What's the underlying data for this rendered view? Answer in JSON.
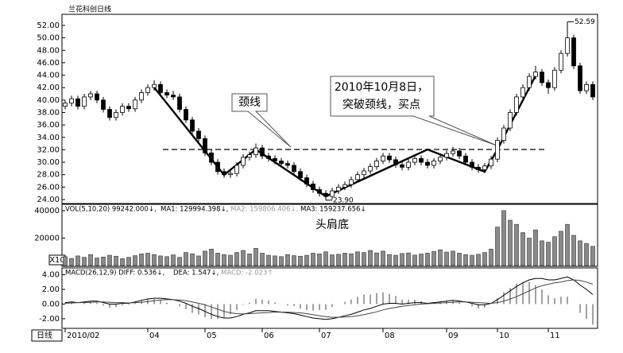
{
  "chart_data": [
    {
      "type": "candlestick",
      "title": "兰花科创日线",
      "period_label": "日线",
      "pattern_label": "头肩底",
      "neckline_label": "颈线",
      "callout": [
        "2010年10月8日，",
        "突破颈线，买点"
      ],
      "high_label": "52.59",
      "low_label": "23.90",
      "up_color": "#ffffff",
      "down_color": "#000000",
      "categories": [
        "2010/02",
        null,
        null,
        null,
        null,
        null,
        null,
        null,
        null,
        null,
        null,
        null,
        null,
        "04",
        null,
        null,
        null,
        null,
        null,
        null,
        null,
        null,
        "05",
        null,
        null,
        null,
        null,
        null,
        null,
        null,
        null,
        "06",
        null,
        null,
        null,
        null,
        null,
        null,
        null,
        null,
        "07",
        null,
        null,
        null,
        null,
        null,
        null,
        null,
        null,
        null,
        "08",
        null,
        null,
        null,
        null,
        null,
        null,
        null,
        null,
        null,
        "09",
        null,
        null,
        null,
        null,
        null,
        null,
        null,
        "10",
        null,
        null,
        null,
        null,
        null,
        null,
        null,
        "11",
        null,
        null,
        null,
        null,
        null,
        null,
        null
      ],
      "ohlc": [
        [
          39.0,
          40.0,
          38.5,
          39.5
        ],
        [
          39.5,
          40.7,
          39.0,
          40.2
        ],
        [
          40.2,
          40.7,
          38.5,
          39.0
        ],
        [
          39.0,
          41.0,
          38.5,
          40.5
        ],
        [
          40.5,
          41.5,
          40.0,
          41.0
        ],
        [
          41.0,
          41.5,
          39.5,
          40.0
        ],
        [
          40.0,
          40.5,
          38.0,
          38.5
        ],
        [
          38.5,
          39.0,
          36.7,
          37.2
        ],
        [
          37.2,
          38.5,
          36.7,
          38.0
        ],
        [
          38.0,
          39.5,
          37.5,
          39.0
        ],
        [
          39.0,
          39.5,
          38.1,
          38.6
        ],
        [
          38.6,
          40.5,
          38.1,
          40.0
        ],
        [
          40.0,
          41.7,
          39.5,
          41.2
        ],
        [
          41.2,
          42.5,
          40.7,
          42.0
        ],
        [
          42.0,
          43.2,
          41.5,
          42.5
        ],
        [
          42.5,
          43.0,
          40.7,
          41.2
        ],
        [
          41.2,
          41.7,
          40.3,
          40.8
        ],
        [
          40.8,
          41.5,
          40.0,
          40.5
        ],
        [
          40.5,
          41.0,
          38.0,
          38.5
        ],
        [
          38.5,
          39.0,
          36.3,
          36.8
        ],
        [
          36.8,
          37.3,
          34.5,
          35.0
        ],
        [
          35.0,
          35.5,
          33.3,
          33.8
        ],
        [
          33.8,
          34.3,
          31.0,
          31.5
        ],
        [
          31.5,
          32.0,
          29.5,
          30.0
        ],
        [
          30.0,
          30.5,
          28.0,
          28.5
        ],
        [
          28.5,
          29.0,
          27.5,
          28.0
        ],
        [
          28.0,
          28.7,
          27.5,
          28.2
        ],
        [
          28.2,
          30.0,
          27.7,
          29.5
        ],
        [
          29.5,
          31.3,
          29.0,
          30.8
        ],
        [
          30.8,
          31.7,
          30.3,
          31.2
        ],
        [
          31.2,
          33.0,
          30.7,
          32.3
        ],
        [
          32.3,
          32.8,
          30.5,
          31.0
        ],
        [
          31.0,
          31.5,
          30.1,
          30.6
        ],
        [
          30.6,
          31.1,
          29.7,
          30.2
        ],
        [
          30.2,
          30.7,
          29.3,
          29.8
        ],
        [
          29.8,
          30.3,
          29.0,
          29.5
        ],
        [
          29.5,
          30.0,
          28.0,
          28.5
        ],
        [
          28.5,
          29.0,
          27.0,
          27.5
        ],
        [
          27.5,
          28.0,
          26.0,
          26.5
        ],
        [
          26.5,
          27.0,
          25.1,
          25.6
        ],
        [
          25.6,
          26.1,
          24.5,
          25.0
        ],
        [
          25.0,
          25.5,
          23.9,
          24.5
        ],
        [
          24.5,
          25.9,
          24.0,
          25.4
        ],
        [
          25.4,
          26.5,
          24.9,
          26.0
        ],
        [
          26.0,
          26.9,
          25.5,
          26.4
        ],
        [
          26.4,
          27.7,
          25.9,
          27.2
        ],
        [
          27.2,
          28.5,
          26.7,
          28.0
        ],
        [
          28.0,
          29.1,
          27.5,
          28.6
        ],
        [
          28.6,
          29.8,
          28.1,
          29.3
        ],
        [
          29.3,
          30.7,
          28.8,
          30.2
        ],
        [
          30.2,
          31.5,
          29.7,
          31.0
        ],
        [
          31.0,
          31.5,
          29.9,
          30.4
        ],
        [
          30.4,
          30.9,
          29.1,
          29.6
        ],
        [
          29.6,
          30.1,
          28.7,
          29.2
        ],
        [
          29.2,
          30.5,
          28.7,
          30.0
        ],
        [
          30.0,
          31.1,
          29.5,
          30.6
        ],
        [
          30.6,
          31.1,
          29.5,
          30.0
        ],
        [
          30.0,
          30.5,
          29.0,
          29.5
        ],
        [
          29.5,
          30.7,
          29.0,
          30.2
        ],
        [
          30.2,
          31.3,
          29.7,
          30.8
        ],
        [
          30.8,
          31.9,
          30.3,
          31.4
        ],
        [
          31.4,
          32.5,
          30.9,
          31.8
        ],
        [
          31.8,
          32.3,
          30.5,
          31.0
        ],
        [
          31.0,
          31.5,
          29.5,
          30.0
        ],
        [
          30.0,
          30.5,
          28.7,
          29.2
        ],
        [
          29.2,
          29.7,
          28.3,
          28.8
        ],
        [
          28.8,
          29.9,
          28.3,
          29.4
        ],
        [
          29.4,
          31.0,
          28.9,
          30.5
        ],
        [
          30.5,
          34.0,
          30.0,
          33.5
        ],
        [
          33.5,
          36.0,
          33.0,
          35.5
        ],
        [
          35.5,
          38.5,
          35.0,
          38.0
        ],
        [
          38.0,
          41.0,
          37.5,
          40.5
        ],
        [
          40.5,
          42.5,
          40.0,
          42.0
        ],
        [
          42.0,
          44.3,
          41.5,
          43.8
        ],
        [
          43.8,
          45.5,
          43.3,
          44.5
        ],
        [
          44.5,
          45.0,
          42.3,
          42.8
        ],
        [
          42.8,
          43.3,
          41.0,
          42.0
        ],
        [
          42.0,
          45.3,
          41.5,
          44.8
        ],
        [
          44.8,
          48.0,
          44.3,
          47.5
        ],
        [
          47.5,
          52.59,
          47.0,
          50.0
        ],
        [
          50.0,
          50.5,
          45.0,
          45.5
        ],
        [
          45.5,
          46.0,
          41.0,
          41.5
        ],
        [
          41.5,
          43.0,
          41.0,
          42.5
        ],
        [
          42.5,
          43.0,
          40.0,
          40.5
        ]
      ],
      "ylim": [
        23.36,
        53.53
      ],
      "yticks": [
        {
          "value": 24,
          "label": "24.00"
        },
        {
          "value": 26,
          "label": "26.00"
        },
        {
          "value": 28,
          "label": "28.00"
        },
        {
          "value": 30,
          "label": "30.00"
        },
        {
          "value": 32,
          "label": "32.00"
        },
        {
          "value": 34,
          "label": "34.00"
        },
        {
          "value": 36,
          "label": "36.00"
        },
        {
          "value": 38,
          "label": "38.00"
        },
        {
          "value": 40,
          "label": "40.00"
        },
        {
          "value": 42,
          "label": "42.00"
        },
        {
          "value": 44,
          "label": "44.00"
        },
        {
          "value": 46,
          "label": "46.00"
        },
        {
          "value": 48,
          "label": "48.00"
        },
        {
          "value": 50,
          "label": "50.00"
        },
        {
          "value": 52,
          "label": "52.00"
        }
      ]
    },
    {
      "type": "bar",
      "header": [
        "VOL(5,10,20) 99242.000↓,",
        "MA1: 129994.398↓,",
        "MA2: 159806.406↓,",
        "MA3: 159237.656↓"
      ],
      "unit_label": "X10",
      "color": "#8a8a8a",
      "values": [
        6500,
        5200,
        7000,
        6000,
        8000,
        5500,
        6200,
        7500,
        6800,
        5000,
        6000,
        7200,
        8500,
        9000,
        8000,
        7000,
        6500,
        7800,
        6000,
        9500,
        8500,
        7000,
        10500,
        12000,
        9000,
        8000,
        7500,
        9500,
        11000,
        8500,
        12500,
        9000,
        7500,
        7000,
        6500,
        8000,
        7200,
        6800,
        7500,
        9000,
        8500,
        10000,
        7800,
        8200,
        9000,
        8600,
        10000,
        9500,
        11000,
        9200,
        10500,
        8000,
        7500,
        8800,
        9200,
        7600,
        8400,
        9000,
        10200,
        11500,
        9800,
        10500,
        9000,
        8000,
        7500,
        8200,
        9500,
        12000,
        28000,
        40000,
        33000,
        30000,
        24000,
        20000,
        26000,
        18000,
        17000,
        21000,
        25000,
        30000,
        22000,
        18000,
        16000,
        14000
      ],
      "ylim": [
        0,
        44000
      ],
      "yticks": [
        20000,
        40000
      ]
    },
    {
      "type": "macd",
      "header": [
        "MACD(26,12,9) DIFF: 0.536↓,",
        "DEA: 1.547↓,",
        "MACD: -2.023↑"
      ],
      "color": "#8a8a8a",
      "values": [
        0.2,
        0.3,
        0,
        0.2,
        0.3,
        0.2,
        -0.2,
        -0.5,
        -0.4,
        -0.2,
        -0.1,
        0.2,
        0.5,
        0.7,
        0.7,
        0.5,
        0.2,
        0,
        -0.3,
        -0.7,
        -1.2,
        -1.4,
        -1.8,
        -2.0,
        -2.0,
        -1.8,
        -1.4,
        -0.8,
        -0.1,
        0.2,
        0.7,
        0.6,
        0.5,
        0.2,
        0,
        -0.2,
        -0.3,
        -0.6,
        -0.8,
        -0.9,
        -0.8,
        -0.8,
        -0.4,
        0,
        0.3,
        0.6,
        1.0,
        1.3,
        1.3,
        1.5,
        1.6,
        1.4,
        1.1,
        0.6,
        0.6,
        0.6,
        0.4,
        0.1,
        0.2,
        0.3,
        0.4,
        0.5,
        0.2,
        0,
        -0.3,
        -0.6,
        -0.5,
        0,
        0.8,
        1.6,
        2.2,
        2.8,
        3.0,
        3.0,
        2.6,
        2.0,
        1.2,
        0.8,
        1.0,
        1.0,
        0,
        -1.2,
        -2.0,
        -2.8
      ],
      "series": [
        {
          "name": "DIFF",
          "color": "#000000",
          "values": [
            0.2,
            0.3,
            0.2,
            0.3,
            0.4,
            0.4,
            0.2,
            0,
            0,
            0.1,
            0.1,
            0.3,
            0.5,
            0.7,
            0.8,
            0.8,
            0.7,
            0.6,
            0.4,
            0.1,
            -0.3,
            -0.6,
            -1.0,
            -1.4,
            -1.7,
            -1.9,
            -1.9,
            -1.7,
            -1.4,
            -1.2,
            -0.9,
            -0.9,
            -0.9,
            -1.0,
            -1.1,
            -1.2,
            -1.3,
            -1.5,
            -1.7,
            -1.9,
            -2.0,
            -2.1,
            -2.0,
            -1.8,
            -1.6,
            -1.4,
            -1.1,
            -0.8,
            -0.6,
            -0.3,
            0,
            0.1,
            0.1,
            0,
            0.1,
            0.2,
            0.2,
            0.1,
            0.2,
            0.3,
            0.4,
            0.5,
            0.4,
            0.3,
            0.1,
            -0.1,
            -0.1,
            0.1,
            0.6,
            1.2,
            1.8,
            2.4,
            2.9,
            3.3,
            3.5,
            3.5,
            3.3,
            3.3,
            3.5,
            3.7,
            3.3,
            2.6,
            2.0,
            1.3
          ]
        },
        {
          "name": "DEA",
          "color": "#444444",
          "values": [
            0.1,
            0.15,
            0.2,
            0.2,
            0.25,
            0.3,
            0.3,
            0.25,
            0.2,
            0.2,
            0.15,
            0.2,
            0.25,
            0.35,
            0.45,
            0.55,
            0.6,
            0.6,
            0.55,
            0.45,
            0.3,
            0.1,
            -0.1,
            -0.4,
            -0.7,
            -1.0,
            -1.2,
            -1.3,
            -1.35,
            -1.3,
            -1.25,
            -1.2,
            -1.15,
            -1.1,
            -1.1,
            -1.1,
            -1.15,
            -1.2,
            -1.3,
            -1.45,
            -1.6,
            -1.7,
            -1.8,
            -1.8,
            -1.75,
            -1.7,
            -1.6,
            -1.45,
            -1.25,
            -1.05,
            -0.8,
            -0.6,
            -0.45,
            -0.3,
            -0.2,
            -0.1,
            0,
            0.05,
            0.1,
            0.15,
            0.2,
            0.25,
            0.3,
            0.3,
            0.25,
            0.2,
            0.15,
            0.1,
            0.2,
            0.4,
            0.7,
            1.0,
            1.4,
            1.8,
            2.2,
            2.5,
            2.7,
            2.9,
            3.0,
            3.2,
            3.3,
            3.2,
            3.0,
            2.7
          ]
        }
      ],
      "ylim": [
        -3.2,
        4.6
      ],
      "yticks": [
        {
          "value": -2,
          "label": "-2.00"
        },
        {
          "value": 0,
          "label": "0.00"
        },
        {
          "value": 2,
          "label": "2.00"
        },
        {
          "value": 4,
          "label": "4.00"
        }
      ]
    }
  ]
}
